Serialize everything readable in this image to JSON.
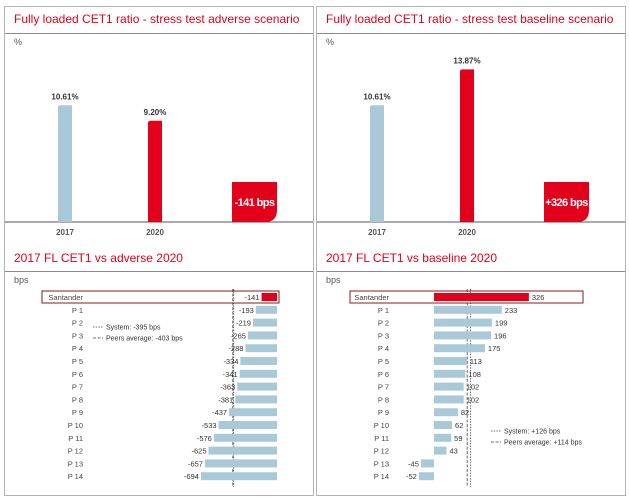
{
  "colors": {
    "accent": "#e2001a",
    "bar_blue": "#a9c9d9",
    "text": "#333333"
  },
  "left": {
    "title": "Fully loaded CET1 ratio - stress test adverse scenario",
    "unit": "%",
    "subtitle": "2017 FL CET1 vs adverse 2020",
    "subunit": "bps"
  },
  "right": {
    "title": "Fully loaded CET1 ratio - stress test baseline scenario",
    "unit": "%",
    "subtitle": "2017 FL CET1 vs baseline 2020",
    "subunit": "bps"
  },
  "chart_data": [
    {
      "type": "bar",
      "title": "Fully loaded CET1 ratio - stress test adverse scenario",
      "ylabel": "%",
      "categories": [
        "2017",
        "2020"
      ],
      "values": [
        10.61,
        9.2
      ],
      "labels": [
        "10.61%",
        "9.20%"
      ],
      "ylim": [
        0,
        15
      ],
      "badge": "-141 bps"
    },
    {
      "type": "bar",
      "title": "Fully loaded CET1 ratio - stress test baseline scenario",
      "ylabel": "%",
      "categories": [
        "2017",
        "2020"
      ],
      "values": [
        10.61,
        13.87
      ],
      "labels": [
        "10.61%",
        "13.87%"
      ],
      "ylim": [
        0,
        15
      ],
      "badge": "+326 bps"
    },
    {
      "type": "bar",
      "orientation": "horizontal",
      "title": "2017 FL CET1 vs adverse 2020",
      "unit": "bps",
      "categories": [
        "Santander",
        "P 1",
        "P 2",
        "P 3",
        "P 4",
        "P 5",
        "P 6",
        "P 7",
        "P 8",
        "P 9",
        "P 10",
        "P 11",
        "P 12",
        "P 13",
        "P 14"
      ],
      "values": [
        -141,
        -193,
        -219,
        -265,
        -288,
        -334,
        -341,
        -363,
        -381,
        -437,
        -533,
        -576,
        -625,
        -657,
        -694
      ],
      "reference_lines": [
        {
          "label": "System: -395 bps",
          "value": -395
        },
        {
          "label": "Peers average: -403 bps",
          "value": -403
        }
      ]
    },
    {
      "type": "bar",
      "orientation": "horizontal",
      "title": "2017 FL CET1 vs baseline 2020",
      "unit": "bps",
      "categories": [
        "Santander",
        "P 1",
        "P 2",
        "P 3",
        "P 4",
        "P 5",
        "P 6",
        "P 7",
        "P 8",
        "P 9",
        "P 10",
        "P 11",
        "P 12",
        "P 13",
        "P 14"
      ],
      "values": [
        326,
        233,
        199,
        196,
        175,
        113,
        108,
        102,
        102,
        82,
        62,
        59,
        43,
        -45,
        -52
      ],
      "reference_lines": [
        {
          "label": "System: +126 bps",
          "value": 126
        },
        {
          "label": "Peers average: +114 bps",
          "value": 114
        }
      ]
    }
  ]
}
